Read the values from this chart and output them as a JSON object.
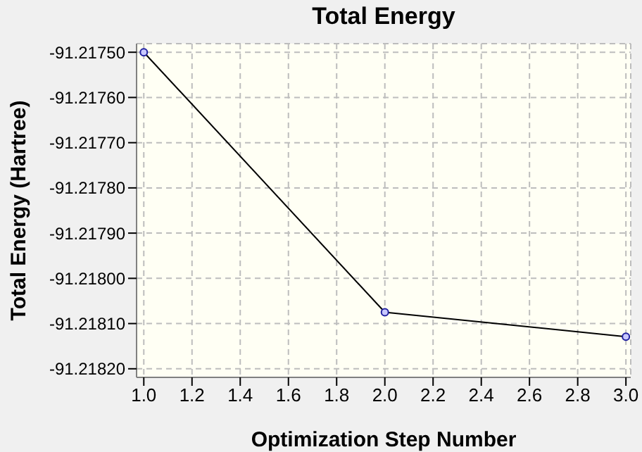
{
  "chart_data": {
    "type": "line",
    "title": "Total Energy",
    "xlabel": "Optimization Step Number",
    "ylabel": "Total Energy (Hartree)",
    "x": [
      1,
      2,
      3
    ],
    "series": [
      {
        "color": "#000000",
        "values": [
          -91.2175,
          -91.218075,
          -91.218129
        ]
      }
    ],
    "xlim": [
      0.97,
      3.02
    ],
    "xticks": [
      {
        "value": 1,
        "label": "1.0"
      },
      {
        "value": 1.2,
        "label": "1.2"
      },
      {
        "value": 1.4,
        "label": "1.4"
      },
      {
        "value": 1.6,
        "label": "1.6"
      },
      {
        "value": 1.8,
        "label": "1.8"
      },
      {
        "value": 2,
        "label": "2.0"
      },
      {
        "value": 2.2,
        "label": "2.2"
      },
      {
        "value": 2.4,
        "label": "2.4"
      },
      {
        "value": 2.6,
        "label": "2.6"
      },
      {
        "value": 2.8,
        "label": "2.8"
      },
      {
        "value": 3,
        "label": "3.0"
      }
    ],
    "ylim": [
      -91.218219,
      -91.217481
    ],
    "yticks": [
      {
        "value": -91.2175,
        "label": "-91.21750"
      },
      {
        "value": -91.2176,
        "label": "-91.21760"
      },
      {
        "value": -91.2177,
        "label": "-91.21770"
      },
      {
        "value": -91.2178,
        "label": "-91.21780"
      },
      {
        "value": -91.2179,
        "label": "-91.21790"
      },
      {
        "value": -91.218,
        "label": "-91.21800"
      },
      {
        "value": -91.2181,
        "label": "-91.21810"
      },
      {
        "value": -91.2182,
        "label": "-91.21820"
      }
    ],
    "grid": true,
    "marker": "circle",
    "line_style": "solid",
    "legend": false
  }
}
